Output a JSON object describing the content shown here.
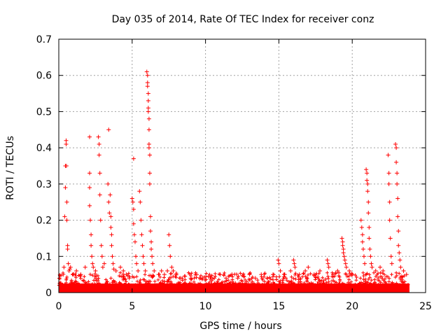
{
  "chart_data": {
    "type": "scatter",
    "title": "Day 035 of 2014, Rate Of TEC Index for receiver conz",
    "xlabel": "GPS time / hours",
    "ylabel": "ROTI / TECUs",
    "xlim": [
      0,
      25
    ],
    "ylim": [
      0,
      0.7
    ],
    "x_ticks": [
      0,
      5,
      10,
      15,
      20,
      25
    ],
    "x_tick_labels": [
      "0",
      "5",
      "10",
      "15",
      "20",
      "25"
    ],
    "y_ticks": [
      0,
      0.1,
      0.2,
      0.3,
      0.4,
      0.5,
      0.6,
      0.7
    ],
    "y_tick_labels": [
      "0",
      "0.1",
      "0.2",
      "0.3",
      "0.4",
      "0.5",
      "0.6",
      "0.7"
    ],
    "grid": true,
    "marker": "+",
    "marker_color": "#ff0000",
    "background_band": {
      "x_range": [
        0,
        23.9
      ],
      "y_range": [
        0,
        0.025
      ]
    },
    "series": [
      {
        "name": "ROTI",
        "points": [
          [
            0.3,
            0.05
          ],
          [
            0.35,
            0.07
          ],
          [
            0.4,
            0.21
          ],
          [
            0.45,
            0.29
          ],
          [
            0.45,
            0.35
          ],
          [
            0.5,
            0.42
          ],
          [
            0.5,
            0.41
          ],
          [
            0.52,
            0.35
          ],
          [
            0.55,
            0.25
          ],
          [
            0.55,
            0.2
          ],
          [
            0.6,
            0.13
          ],
          [
            0.6,
            0.12
          ],
          [
            0.65,
            0.08
          ],
          [
            0.7,
            0.06
          ],
          [
            0.75,
            0.065
          ],
          [
            0.8,
            0.07
          ],
          [
            1.0,
            0.05
          ],
          [
            1.2,
            0.06
          ],
          [
            1.5,
            0.05
          ],
          [
            1.8,
            0.07
          ],
          [
            2.1,
            0.43
          ],
          [
            2.1,
            0.33
          ],
          [
            2.1,
            0.29
          ],
          [
            2.1,
            0.24
          ],
          [
            2.15,
            0.2
          ],
          [
            2.2,
            0.16
          ],
          [
            2.2,
            0.13
          ],
          [
            2.25,
            0.1
          ],
          [
            2.3,
            0.08
          ],
          [
            2.35,
            0.07
          ],
          [
            2.5,
            0.06
          ],
          [
            2.7,
            0.43
          ],
          [
            2.75,
            0.41
          ],
          [
            2.75,
            0.38
          ],
          [
            2.8,
            0.33
          ],
          [
            2.8,
            0.27
          ],
          [
            2.85,
            0.2
          ],
          [
            2.9,
            0.13
          ],
          [
            2.95,
            0.1
          ],
          [
            3.0,
            0.07
          ],
          [
            3.1,
            0.08
          ],
          [
            3.4,
            0.45
          ],
          [
            3.35,
            0.3
          ],
          [
            3.4,
            0.25
          ],
          [
            3.45,
            0.22
          ],
          [
            3.5,
            0.27
          ],
          [
            3.55,
            0.21
          ],
          [
            3.55,
            0.18
          ],
          [
            3.6,
            0.16
          ],
          [
            3.6,
            0.13
          ],
          [
            3.65,
            0.1
          ],
          [
            3.7,
            0.08
          ],
          [
            3.75,
            0.065
          ],
          [
            3.9,
            0.06
          ],
          [
            4.2,
            0.07
          ],
          [
            4.4,
            0.06
          ],
          [
            4.6,
            0.05
          ],
          [
            4.8,
            0.04
          ],
          [
            5.1,
            0.37
          ],
          [
            5.0,
            0.26
          ],
          [
            5.05,
            0.25
          ],
          [
            5.1,
            0.23
          ],
          [
            5.1,
            0.19
          ],
          [
            5.15,
            0.16
          ],
          [
            5.2,
            0.14
          ],
          [
            5.25,
            0.1
          ],
          [
            5.3,
            0.08
          ],
          [
            5.4,
            0.06
          ],
          [
            5.5,
            0.28
          ],
          [
            5.55,
            0.25
          ],
          [
            5.6,
            0.2
          ],
          [
            5.65,
            0.16
          ],
          [
            5.7,
            0.13
          ],
          [
            5.75,
            0.1
          ],
          [
            5.8,
            0.08
          ],
          [
            5.9,
            0.06
          ],
          [
            6.0,
            0.61
          ],
          [
            6.05,
            0.6
          ],
          [
            6.05,
            0.58
          ],
          [
            6.05,
            0.57
          ],
          [
            6.1,
            0.55
          ],
          [
            6.1,
            0.53
          ],
          [
            6.1,
            0.51
          ],
          [
            6.1,
            0.5
          ],
          [
            6.15,
            0.48
          ],
          [
            6.15,
            0.45
          ],
          [
            6.15,
            0.41
          ],
          [
            6.15,
            0.4
          ],
          [
            6.2,
            0.38
          ],
          [
            6.2,
            0.33
          ],
          [
            6.2,
            0.3
          ],
          [
            6.25,
            0.21
          ],
          [
            6.25,
            0.17
          ],
          [
            6.3,
            0.14
          ],
          [
            6.3,
            0.12
          ],
          [
            6.35,
            0.1
          ],
          [
            6.4,
            0.08
          ],
          [
            6.5,
            0.06
          ],
          [
            6.8,
            0.05
          ],
          [
            7.0,
            0.06
          ],
          [
            7.2,
            0.05
          ],
          [
            7.4,
            0.06
          ],
          [
            7.5,
            0.16
          ],
          [
            7.55,
            0.13
          ],
          [
            7.6,
            0.1
          ],
          [
            7.7,
            0.07
          ],
          [
            7.8,
            0.06
          ],
          [
            8.0,
            0.05
          ],
          [
            8.3,
            0.04
          ],
          [
            8.6,
            0.045
          ],
          [
            9.0,
            0.04
          ],
          [
            9.4,
            0.05
          ],
          [
            9.8,
            0.04
          ],
          [
            10.2,
            0.045
          ],
          [
            10.6,
            0.04
          ],
          [
            11.0,
            0.05
          ],
          [
            11.4,
            0.04
          ],
          [
            11.8,
            0.05
          ],
          [
            12.2,
            0.04
          ],
          [
            12.6,
            0.045
          ],
          [
            13.0,
            0.05
          ],
          [
            13.4,
            0.04
          ],
          [
            13.8,
            0.05
          ],
          [
            14.2,
            0.04
          ],
          [
            14.6,
            0.05
          ],
          [
            14.95,
            0.09
          ],
          [
            15.0,
            0.08
          ],
          [
            15.1,
            0.06
          ],
          [
            15.4,
            0.05
          ],
          [
            15.8,
            0.06
          ],
          [
            16.0,
            0.09
          ],
          [
            16.05,
            0.08
          ],
          [
            16.1,
            0.07
          ],
          [
            16.4,
            0.05
          ],
          [
            16.8,
            0.06
          ],
          [
            17.0,
            0.07
          ],
          [
            17.4,
            0.05
          ],
          [
            17.8,
            0.06
          ],
          [
            18.3,
            0.09
          ],
          [
            18.35,
            0.08
          ],
          [
            18.4,
            0.07
          ],
          [
            18.7,
            0.05
          ],
          [
            19.0,
            0.06
          ],
          [
            19.3,
            0.15
          ],
          [
            19.35,
            0.14
          ],
          [
            19.35,
            0.13
          ],
          [
            19.4,
            0.12
          ],
          [
            19.4,
            0.11
          ],
          [
            19.45,
            0.1
          ],
          [
            19.5,
            0.09
          ],
          [
            19.55,
            0.08
          ],
          [
            19.6,
            0.07
          ],
          [
            19.8,
            0.06
          ],
          [
            20.0,
            0.05
          ],
          [
            20.6,
            0.2
          ],
          [
            20.65,
            0.18
          ],
          [
            20.7,
            0.16
          ],
          [
            20.7,
            0.14
          ],
          [
            20.75,
            0.12
          ],
          [
            20.8,
            0.1
          ],
          [
            20.85,
            0.08
          ],
          [
            20.95,
            0.34
          ],
          [
            21.0,
            0.33
          ],
          [
            21.0,
            0.31
          ],
          [
            21.05,
            0.3
          ],
          [
            21.05,
            0.28
          ],
          [
            21.1,
            0.25
          ],
          [
            21.1,
            0.22
          ],
          [
            21.15,
            0.18
          ],
          [
            21.15,
            0.15
          ],
          [
            21.2,
            0.12
          ],
          [
            21.25,
            0.1
          ],
          [
            21.3,
            0.08
          ],
          [
            21.35,
            0.07
          ],
          [
            21.6,
            0.06
          ],
          [
            21.9,
            0.07
          ],
          [
            22.1,
            0.06
          ],
          [
            22.45,
            0.38
          ],
          [
            22.5,
            0.33
          ],
          [
            22.5,
            0.3
          ],
          [
            22.55,
            0.25
          ],
          [
            22.55,
            0.2
          ],
          [
            22.6,
            0.15
          ],
          [
            22.65,
            0.1
          ],
          [
            22.7,
            0.08
          ],
          [
            22.95,
            0.41
          ],
          [
            23.0,
            0.4
          ],
          [
            23.0,
            0.36
          ],
          [
            23.05,
            0.33
          ],
          [
            23.05,
            0.3
          ],
          [
            23.1,
            0.26
          ],
          [
            23.1,
            0.21
          ],
          [
            23.15,
            0.17
          ],
          [
            23.15,
            0.13
          ],
          [
            23.2,
            0.11
          ],
          [
            23.25,
            0.09
          ],
          [
            23.3,
            0.07
          ],
          [
            23.5,
            0.06
          ],
          [
            23.7,
            0.05
          ]
        ]
      }
    ]
  }
}
